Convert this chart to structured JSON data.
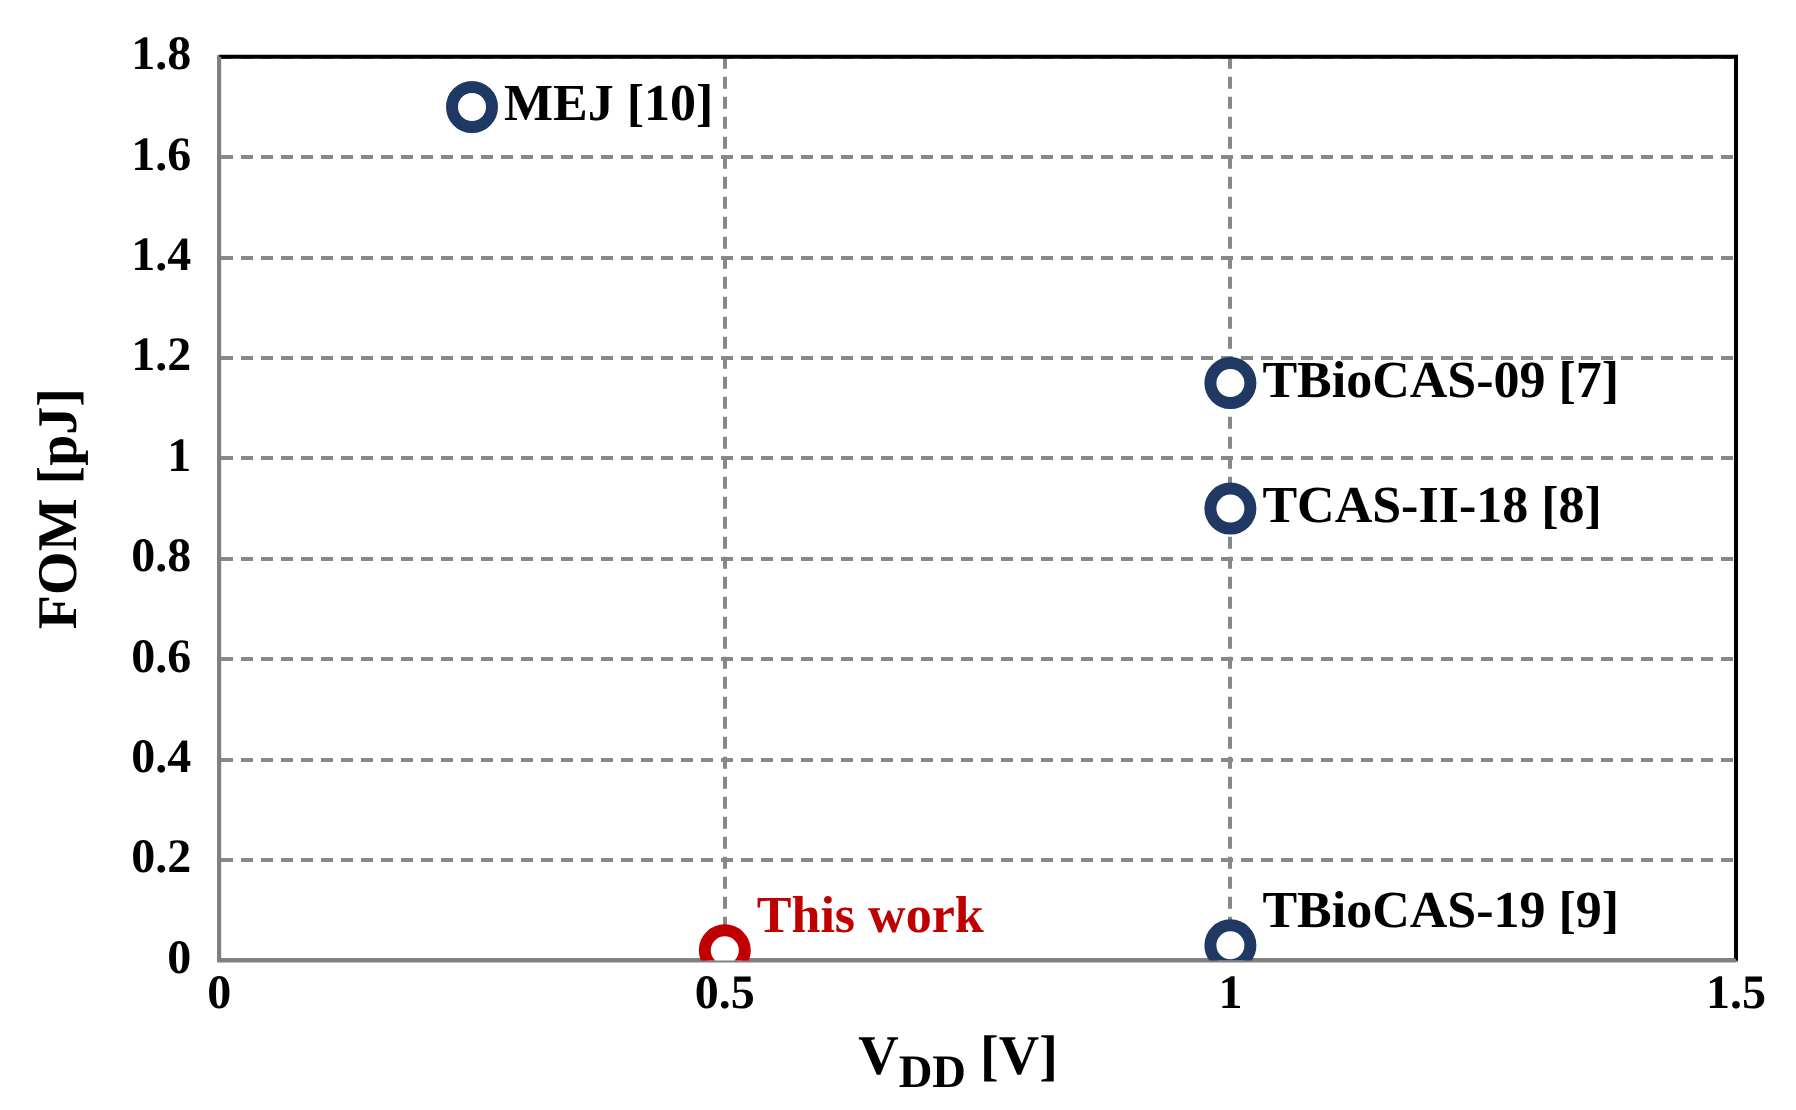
{
  "chart_data": {
    "type": "scatter",
    "xlabel": "V$_{DD}$ [V]",
    "ylabel": "FOM [pJ]",
    "x": [
      0.25,
      1,
      1,
      1,
      0.5
    ],
    "series": [
      {
        "values": [
          1.7,
          1.15,
          0.9,
          0.03,
          0.02
        ],
        "colors": [
          "#203864",
          "#203864",
          "#203864",
          "#203864",
          "#c00000"
        ]
      }
    ],
    "xlim": [
      0,
      1.5
    ],
    "xticks": [
      0,
      0.5,
      1,
      1.5
    ],
    "ylim": [
      0,
      1.8
    ],
    "yticks": [
      0,
      0.2,
      0.4,
      0.6,
      0.8,
      1,
      1.2,
      1.4,
      1.6,
      1.8
    ],
    "grid": true,
    "marker": "circle",
    "legend": false,
    "annotations": [
      {
        "text": "MEJ [10]",
        "x": 0.25,
        "y": 1.7
      },
      {
        "text": "TBioCAS-09 [7]",
        "x": 1,
        "y": 1.15
      },
      {
        "text": "TCAS-II-18 [8]",
        "x": 1,
        "y": 0.9
      },
      {
        "text": "TBioCAS-19 [9]",
        "x": 1,
        "y": 0.03
      },
      {
        "text": "This work",
        "x": 0.5,
        "y": 0.02
      }
    ]
  }
}
